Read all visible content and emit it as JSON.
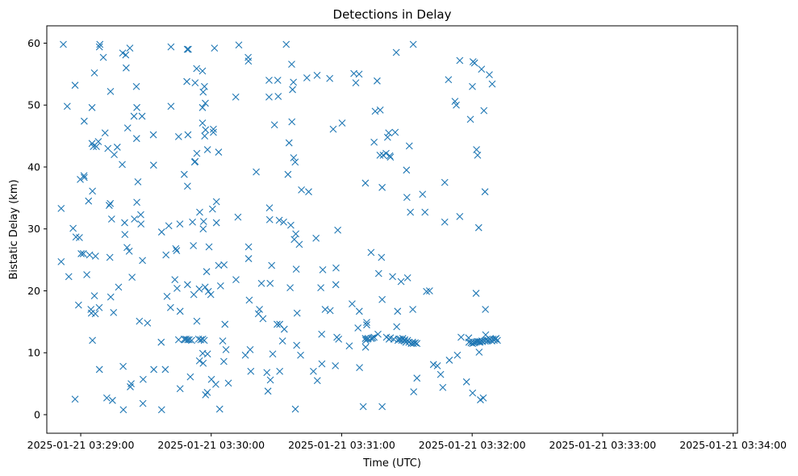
{
  "chart_data": {
    "type": "scatter",
    "title": "Detections in Delay",
    "xlabel": "Time (UTC)",
    "ylabel": "Bistatic Delay (km)",
    "marker": "x",
    "color": "#1f77b4",
    "grid": false,
    "x_unit": "seconds after 2025-01-21 03:29:00 UTC",
    "xlim": [
      -15.6,
      302
    ],
    "ylim": [
      -3.0,
      62.8
    ],
    "x_ticks": [
      {
        "value": 0,
        "label": "2025-01-21 03:29:00"
      },
      {
        "value": 60,
        "label": "2025-01-21 03:30:00"
      },
      {
        "value": 120,
        "label": "2025-01-21 03:31:00"
      },
      {
        "value": 180,
        "label": "2025-01-21 03:32:00"
      },
      {
        "value": 240,
        "label": "2025-01-21 03:33:00"
      },
      {
        "value": 300,
        "label": "2025-01-21 03:34:00"
      }
    ],
    "y_ticks": [
      {
        "value": 0,
        "label": "0"
      },
      {
        "value": 10,
        "label": "10"
      },
      {
        "value": 20,
        "label": "20"
      },
      {
        "value": 30,
        "label": "30"
      },
      {
        "value": 40,
        "label": "40"
      },
      {
        "value": 50,
        "label": "50"
      },
      {
        "value": 60,
        "label": "60"
      }
    ],
    "points": [
      [
        -8.0,
        59.8
      ],
      [
        -6.2,
        49.8
      ],
      [
        -9.0,
        33.3
      ],
      [
        -9.0,
        24.7
      ],
      [
        -5.5,
        22.3
      ],
      [
        -3.5,
        30.1
      ],
      [
        -2.6,
        53.2
      ],
      [
        -2.6,
        2.5
      ],
      [
        -2.2,
        28.7
      ],
      [
        -1.0,
        17.7
      ],
      [
        -0.6,
        28.6
      ],
      [
        -0.2,
        38.0
      ],
      [
        0.2,
        26.0
      ],
      [
        1.2,
        26.0
      ],
      [
        1.5,
        38.6
      ],
      [
        1.6,
        38.3
      ],
      [
        1.6,
        47.4
      ],
      [
        2.8,
        22.6
      ],
      [
        3.6,
        34.5
      ],
      [
        4.1,
        25.8
      ],
      [
        4.7,
        17.0
      ],
      [
        4.9,
        16.4
      ],
      [
        5.2,
        49.6
      ],
      [
        5.2,
        43.8
      ],
      [
        5.4,
        36.1
      ],
      [
        5.4,
        12.0
      ],
      [
        5.8,
        43.3
      ],
      [
        6.3,
        55.2
      ],
      [
        6.3,
        19.2
      ],
      [
        6.7,
        16.3
      ],
      [
        6.8,
        25.6
      ],
      [
        7.2,
        43.3
      ],
      [
        8.1,
        44.1
      ],
      [
        8.5,
        17.3
      ],
      [
        8.6,
        7.3
      ],
      [
        8.6,
        59.4
      ],
      [
        8.8,
        59.8
      ],
      [
        10.4,
        57.7
      ],
      [
        11.2,
        45.5
      ],
      [
        12.0,
        2.7
      ],
      [
        12.5,
        43.0
      ],
      [
        13.1,
        33.8
      ],
      [
        13.4,
        25.4
      ],
      [
        13.6,
        34.1
      ],
      [
        13.7,
        52.2
      ],
      [
        13.8,
        19.0
      ],
      [
        14.2,
        31.6
      ],
      [
        14.6,
        2.3
      ],
      [
        15.1,
        16.5
      ],
      [
        15.4,
        42.0
      ],
      [
        16.8,
        43.2
      ],
      [
        17.4,
        20.6
      ],
      [
        19.1,
        40.4
      ],
      [
        19.3,
        58.4
      ],
      [
        19.5,
        7.8
      ],
      [
        19.6,
        0.8
      ],
      [
        20.2,
        31.0
      ],
      [
        20.3,
        29.1
      ],
      [
        20.7,
        58.1
      ],
      [
        20.9,
        56.0
      ],
      [
        21.3,
        27.0
      ],
      [
        21.6,
        46.3
      ],
      [
        22.3,
        26.4
      ],
      [
        22.6,
        59.2
      ],
      [
        22.8,
        4.5
      ],
      [
        23.2,
        5.0
      ],
      [
        23.6,
        22.2
      ],
      [
        24.5,
        48.2
      ],
      [
        24.7,
        31.6
      ],
      [
        25.6,
        53.0
      ],
      [
        25.7,
        44.6
      ],
      [
        25.8,
        49.6
      ],
      [
        25.8,
        34.3
      ],
      [
        26.3,
        37.6
      ],
      [
        27.0,
        15.1
      ],
      [
        27.6,
        32.3
      ],
      [
        27.7,
        30.8
      ],
      [
        28.2,
        48.2
      ],
      [
        28.4,
        24.9
      ],
      [
        28.6,
        1.8
      ],
      [
        28.7,
        5.7
      ],
      [
        30.7,
        14.8
      ],
      [
        33.4,
        45.2
      ],
      [
        33.5,
        40.3
      ],
      [
        33.6,
        7.3
      ],
      [
        37.0,
        11.7
      ],
      [
        37.2,
        29.5
      ],
      [
        37.2,
        0.8
      ],
      [
        38.9,
        7.3
      ],
      [
        39.2,
        25.8
      ],
      [
        39.7,
        19.1
      ],
      [
        40.5,
        30.5
      ],
      [
        41.3,
        17.3
      ],
      [
        41.5,
        59.4
      ],
      [
        41.5,
        49.8
      ],
      [
        43.3,
        21.8
      ],
      [
        43.7,
        26.8
      ],
      [
        44.1,
        26.5
      ],
      [
        44.3,
        20.4
      ],
      [
        45.0,
        44.9
      ],
      [
        45.0,
        12.1
      ],
      [
        45.6,
        30.8
      ],
      [
        45.7,
        4.2
      ],
      [
        45.7,
        16.7
      ],
      [
        47.6,
        38.8
      ],
      [
        47.6,
        12.2
      ],
      [
        48.0,
        12.1
      ],
      [
        48.4,
        12.2
      ],
      [
        48.8,
        53.8
      ],
      [
        49.0,
        59.0
      ],
      [
        49.1,
        36.9
      ],
      [
        49.1,
        21.0
      ],
      [
        49.2,
        12.1
      ],
      [
        49.3,
        45.2
      ],
      [
        49.5,
        59.0
      ],
      [
        49.9,
        12.1
      ],
      [
        50.4,
        6.1
      ],
      [
        51.0,
        12.0
      ],
      [
        51.4,
        31.1
      ],
      [
        51.8,
        27.3
      ],
      [
        52.0,
        19.4
      ],
      [
        52.4,
        40.8
      ],
      [
        52.6,
        40.9
      ],
      [
        52.6,
        53.6
      ],
      [
        53.3,
        55.9
      ],
      [
        53.4,
        15.1
      ],
      [
        53.4,
        42.2
      ],
      [
        54.2,
        12.2
      ],
      [
        54.5,
        20.3
      ],
      [
        54.6,
        8.7
      ],
      [
        54.7,
        32.7
      ],
      [
        55.2,
        12.1
      ],
      [
        56.0,
        55.5
      ],
      [
        56.0,
        49.6
      ],
      [
        56.0,
        47.1
      ],
      [
        56.1,
        9.9
      ],
      [
        56.1,
        12.2
      ],
      [
        56.3,
        52.1
      ],
      [
        56.3,
        30.0
      ],
      [
        56.3,
        8.3
      ],
      [
        56.5,
        31.2
      ],
      [
        56.8,
        12.0
      ],
      [
        56.9,
        53.0
      ],
      [
        57.0,
        45.0
      ],
      [
        57.2,
        20.6
      ],
      [
        57.3,
        50.3
      ],
      [
        57.4,
        46.0
      ],
      [
        57.4,
        3.2
      ],
      [
        57.9,
        23.1
      ],
      [
        58.2,
        3.6
      ],
      [
        58.3,
        9.8
      ],
      [
        58.3,
        42.8
      ],
      [
        58.7,
        19.9
      ],
      [
        59.0,
        27.1
      ],
      [
        59.8,
        19.4
      ],
      [
        60.1,
        5.7
      ],
      [
        60.6,
        33.2
      ],
      [
        61.0,
        46.1
      ],
      [
        61.0,
        45.6
      ],
      [
        61.5,
        59.2
      ],
      [
        62.1,
        4.9
      ],
      [
        62.4,
        34.4
      ],
      [
        62.4,
        31.0
      ],
      [
        63.4,
        42.4
      ],
      [
        63.4,
        24.1
      ],
      [
        63.9,
        0.9
      ],
      [
        64.3,
        20.8
      ],
      [
        65.3,
        11.9
      ],
      [
        65.8,
        8.6
      ],
      [
        65.9,
        24.2
      ],
      [
        66.3,
        14.6
      ],
      [
        66.8,
        10.5
      ],
      [
        67.9,
        5.1
      ],
      [
        71.3,
        51.3
      ],
      [
        71.4,
        21.8
      ],
      [
        72.3,
        31.9
      ],
      [
        72.7,
        59.7
      ],
      [
        75.7,
        9.6
      ],
      [
        77.0,
        57.7
      ],
      [
        77.1,
        57.1
      ],
      [
        77.2,
        27.1
      ],
      [
        77.2,
        25.2
      ],
      [
        77.5,
        18.5
      ],
      [
        77.9,
        10.5
      ],
      [
        78.2,
        7.0
      ],
      [
        80.7,
        39.2
      ],
      [
        81.7,
        16.3
      ],
      [
        82.2,
        17.0
      ],
      [
        83.1,
        21.2
      ],
      [
        83.8,
        15.5
      ],
      [
        85.6,
        6.8
      ],
      [
        86.1,
        3.8
      ],
      [
        86.6,
        54.0
      ],
      [
        86.6,
        51.3
      ],
      [
        86.8,
        33.4
      ],
      [
        86.9,
        31.5
      ],
      [
        87.1,
        21.2
      ],
      [
        87.2,
        5.6
      ],
      [
        87.8,
        24.1
      ],
      [
        88.3,
        9.8
      ],
      [
        89.1,
        46.8
      ],
      [
        90.3,
        14.6
      ],
      [
        90.6,
        54.0
      ],
      [
        90.8,
        51.4
      ],
      [
        91.3,
        31.4
      ],
      [
        91.5,
        7.0
      ],
      [
        91.5,
        14.6
      ],
      [
        92.8,
        11.9
      ],
      [
        93.3,
        31.1
      ],
      [
        93.6,
        13.8
      ],
      [
        94.5,
        59.8
      ],
      [
        95.3,
        38.8
      ],
      [
        95.8,
        43.9
      ],
      [
        96.3,
        20.5
      ],
      [
        96.6,
        30.6
      ],
      [
        97.0,
        56.6
      ],
      [
        97.1,
        47.3
      ],
      [
        97.4,
        52.5
      ],
      [
        97.8,
        53.7
      ],
      [
        97.9,
        41.5
      ],
      [
        98.2,
        28.3
      ],
      [
        98.6,
        40.8
      ],
      [
        98.7,
        0.9
      ],
      [
        98.9,
        29.2
      ],
      [
        99.1,
        23.5
      ],
      [
        99.3,
        11.2
      ],
      [
        99.5,
        16.4
      ],
      [
        100.5,
        27.5
      ],
      [
        101.1,
        9.6
      ],
      [
        101.5,
        36.3
      ],
      [
        104.0,
        54.4
      ],
      [
        104.8,
        36.0
      ],
      [
        107.0,
        7.0
      ],
      [
        108.2,
        28.5
      ],
      [
        108.7,
        54.8
      ],
      [
        108.8,
        5.5
      ],
      [
        110.4,
        20.5
      ],
      [
        110.8,
        13.0
      ],
      [
        110.9,
        8.2
      ],
      [
        111.3,
        23.4
      ],
      [
        112.4,
        17.0
      ],
      [
        114.5,
        54.3
      ],
      [
        114.7,
        16.8
      ],
      [
        116.1,
        46.1
      ],
      [
        117.1,
        7.9
      ],
      [
        117.3,
        21.0
      ],
      [
        117.4,
        23.7
      ],
      [
        117.8,
        12.5
      ],
      [
        118.2,
        29.8
      ],
      [
        118.6,
        12.2
      ],
      [
        120.2,
        47.1
      ],
      [
        123.5,
        11.1
      ],
      [
        124.8,
        17.9
      ],
      [
        125.6,
        55.1
      ],
      [
        126.5,
        53.6
      ],
      [
        127.5,
        14.0
      ],
      [
        128.0,
        55.0
      ],
      [
        128.1,
        16.7
      ],
      [
        128.2,
        7.6
      ],
      [
        129.9,
        1.3
      ],
      [
        130.9,
        37.4
      ],
      [
        130.9,
        12.3
      ],
      [
        131.0,
        10.9
      ],
      [
        131.1,
        12.0
      ],
      [
        131.5,
        14.5
      ],
      [
        131.5,
        14.9
      ],
      [
        131.8,
        12.2
      ],
      [
        132.2,
        12.3
      ],
      [
        133.5,
        26.2
      ],
      [
        133.6,
        12.3
      ],
      [
        134.2,
        12.4
      ],
      [
        134.9,
        44.0
      ],
      [
        134.9,
        12.5
      ],
      [
        135.4,
        49.0
      ],
      [
        136.3,
        53.9
      ],
      [
        136.7,
        13.0
      ],
      [
        137.0,
        22.8
      ],
      [
        137.6,
        41.9
      ],
      [
        137.7,
        49.2
      ],
      [
        138.3,
        25.4
      ],
      [
        138.6,
        18.6
      ],
      [
        138.6,
        1.3
      ],
      [
        138.6,
        36.7
      ],
      [
        139.1,
        41.9
      ],
      [
        140.4,
        42.2
      ],
      [
        140.6,
        12.5
      ],
      [
        141.1,
        44.8
      ],
      [
        141.6,
        45.5
      ],
      [
        141.8,
        12.2
      ],
      [
        142.1,
        41.8
      ],
      [
        142.4,
        41.6
      ],
      [
        142.4,
        12.4
      ],
      [
        143.4,
        22.3
      ],
      [
        143.9,
        12.2
      ],
      [
        144.6,
        45.6
      ],
      [
        145.1,
        58.5
      ],
      [
        145.3,
        14.2
      ],
      [
        145.7,
        16.7
      ],
      [
        145.9,
        12.0
      ],
      [
        146.3,
        12.2
      ],
      [
        147.0,
        12.2
      ],
      [
        147.3,
        21.5
      ],
      [
        147.6,
        12.0
      ],
      [
        148.1,
        12.3
      ],
      [
        148.9,
        11.9
      ],
      [
        149.0,
        12.1
      ],
      [
        149.5,
        11.7
      ],
      [
        149.8,
        39.5
      ],
      [
        150.0,
        35.1
      ],
      [
        150.3,
        22.1
      ],
      [
        150.3,
        12.0
      ],
      [
        150.9,
        11.7
      ],
      [
        151.1,
        43.4
      ],
      [
        151.6,
        32.7
      ],
      [
        152.0,
        11.5
      ],
      [
        152.6,
        11.7
      ],
      [
        152.7,
        17.0
      ],
      [
        152.9,
        59.8
      ],
      [
        152.9,
        11.5
      ],
      [
        153.1,
        3.7
      ],
      [
        153.8,
        11.6
      ],
      [
        154.6,
        5.9
      ],
      [
        154.6,
        11.5
      ],
      [
        157.2,
        35.6
      ],
      [
        158.3,
        32.7
      ],
      [
        159.0,
        19.9
      ],
      [
        160.4,
        20.0
      ],
      [
        162.2,
        8.1
      ],
      [
        164.0,
        7.9
      ],
      [
        165.5,
        6.5
      ],
      [
        166.5,
        4.4
      ],
      [
        167.4,
        37.5
      ],
      [
        167.4,
        31.1
      ],
      [
        169.1,
        54.1
      ],
      [
        169.5,
        8.8
      ],
      [
        172.1,
        50.6
      ],
      [
        172.7,
        50.0
      ],
      [
        173.2,
        9.6
      ],
      [
        174.3,
        57.2
      ],
      [
        174.3,
        32.0
      ],
      [
        174.9,
        12.5
      ],
      [
        177.4,
        5.3
      ],
      [
        178.4,
        12.4
      ],
      [
        178.5,
        11.7
      ],
      [
        179.2,
        47.7
      ],
      [
        179.5,
        11.6
      ],
      [
        180.1,
        53.0
      ],
      [
        180.2,
        3.5
      ],
      [
        180.2,
        11.5
      ],
      [
        180.4,
        57.0
      ],
      [
        180.9,
        11.6
      ],
      [
        181.1,
        56.8
      ],
      [
        181.6,
        11.7
      ],
      [
        181.8,
        19.6
      ],
      [
        182.0,
        42.8
      ],
      [
        182.2,
        11.8
      ],
      [
        182.5,
        41.9
      ],
      [
        182.8,
        11.8
      ],
      [
        183.0,
        30.2
      ],
      [
        183.2,
        10.1
      ],
      [
        183.5,
        11.7
      ],
      [
        183.6,
        11.8
      ],
      [
        183.8,
        2.4
      ],
      [
        184.3,
        55.8
      ],
      [
        184.4,
        11.9
      ],
      [
        184.8,
        11.8
      ],
      [
        185.1,
        2.7
      ],
      [
        185.4,
        49.1
      ],
      [
        185.8,
        11.9
      ],
      [
        185.9,
        36.0
      ],
      [
        186.1,
        17.0
      ],
      [
        186.2,
        12.9
      ],
      [
        186.5,
        12.1
      ],
      [
        186.9,
        11.9
      ],
      [
        187.4,
        12.0
      ],
      [
        187.9,
        54.9
      ],
      [
        188.0,
        12.2
      ],
      [
        188.5,
        12.1
      ],
      [
        189.0,
        11.9
      ],
      [
        189.2,
        53.4
      ],
      [
        189.6,
        12.2
      ],
      [
        190.1,
        12.0
      ],
      [
        190.5,
        12.2
      ],
      [
        191.0,
        12.3
      ],
      [
        191.6,
        12.0
      ]
    ]
  }
}
